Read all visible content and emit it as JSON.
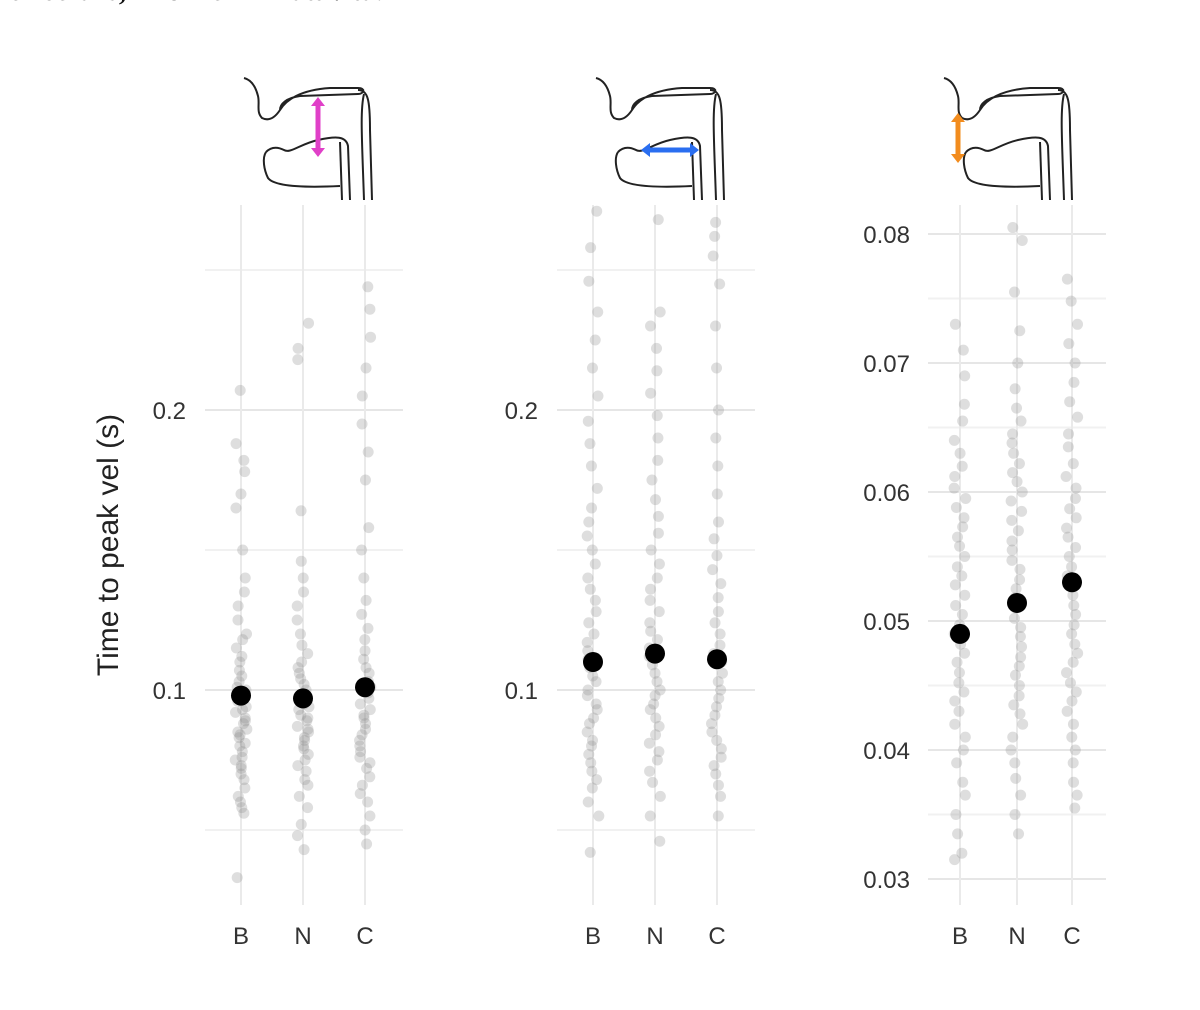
{
  "caption_fragment": "circolare, inibizioni in attività.",
  "chart_data": [
    {
      "type": "scatter",
      "panel": "tongue-tip vertical (raising)",
      "icon": {
        "name": "vocal-tract-icon",
        "arrow": "vertical",
        "arrow_location": "tongue tip",
        "color": "#e040c8"
      },
      "categories": [
        "B",
        "N",
        "C"
      ],
      "ylabel": "Time to peak vel (s)",
      "ylim": [
        0.03,
        0.28
      ],
      "yticks": [
        0.1,
        0.2
      ],
      "ytick_labels": [
        "0.1",
        "0.2"
      ],
      "grid": true,
      "means": [
        0.098,
        0.097,
        0.101
      ],
      "points": {
        "B": [
          0.033,
          0.056,
          0.058,
          0.06,
          0.062,
          0.065,
          0.068,
          0.07,
          0.072,
          0.073,
          0.075,
          0.076,
          0.078,
          0.08,
          0.081,
          0.083,
          0.084,
          0.085,
          0.086,
          0.088,
          0.089,
          0.09,
          0.092,
          0.093,
          0.094,
          0.096,
          0.097,
          0.098,
          0.1,
          0.101,
          0.103,
          0.105,
          0.107,
          0.11,
          0.112,
          0.115,
          0.118,
          0.12,
          0.125,
          0.13,
          0.135,
          0.14,
          0.15,
          0.165,
          0.17,
          0.178,
          0.182,
          0.188,
          0.207
        ],
        "N": [
          0.043,
          0.048,
          0.052,
          0.058,
          0.062,
          0.066,
          0.068,
          0.071,
          0.073,
          0.075,
          0.077,
          0.079,
          0.08,
          0.082,
          0.083,
          0.085,
          0.086,
          0.087,
          0.089,
          0.09,
          0.091,
          0.093,
          0.094,
          0.095,
          0.097,
          0.098,
          0.1,
          0.102,
          0.104,
          0.106,
          0.108,
          0.11,
          0.113,
          0.116,
          0.12,
          0.125,
          0.13,
          0.135,
          0.14,
          0.146,
          0.164,
          0.218,
          0.222,
          0.231
        ],
        "C": [
          0.045,
          0.05,
          0.055,
          0.06,
          0.063,
          0.066,
          0.069,
          0.072,
          0.074,
          0.076,
          0.078,
          0.08,
          0.082,
          0.084,
          0.086,
          0.088,
          0.09,
          0.091,
          0.093,
          0.095,
          0.097,
          0.099,
          0.101,
          0.103,
          0.106,
          0.108,
          0.111,
          0.114,
          0.118,
          0.122,
          0.127,
          0.132,
          0.14,
          0.15,
          0.158,
          0.175,
          0.185,
          0.195,
          0.205,
          0.215,
          0.226,
          0.236,
          0.244
        ]
      }
    },
    {
      "type": "scatter",
      "panel": "tongue-body horizontal (backing)",
      "icon": {
        "name": "vocal-tract-icon",
        "arrow": "horizontal",
        "arrow_location": "tongue body",
        "color": "#2a6ef0"
      },
      "categories": [
        "B",
        "N",
        "C"
      ],
      "ylabel": "",
      "ylim": [
        0.03,
        0.28
      ],
      "yticks": [
        0.1,
        0.2
      ],
      "ytick_labels": [
        "0.1",
        "0.2"
      ],
      "grid": true,
      "means": [
        0.11,
        0.113,
        0.111
      ],
      "points": {
        "B": [
          0.042,
          0.055,
          0.06,
          0.065,
          0.068,
          0.071,
          0.074,
          0.077,
          0.08,
          0.082,
          0.085,
          0.088,
          0.09,
          0.093,
          0.095,
          0.098,
          0.1,
          0.103,
          0.105,
          0.108,
          0.111,
          0.114,
          0.117,
          0.12,
          0.124,
          0.128,
          0.132,
          0.136,
          0.14,
          0.145,
          0.15,
          0.155,
          0.16,
          0.165,
          0.172,
          0.18,
          0.188,
          0.196,
          0.205,
          0.215,
          0.225,
          0.235,
          0.246,
          0.258,
          0.271
        ],
        "N": [
          0.046,
          0.055,
          0.062,
          0.067,
          0.071,
          0.075,
          0.078,
          0.081,
          0.084,
          0.087,
          0.09,
          0.093,
          0.095,
          0.098,
          0.1,
          0.103,
          0.106,
          0.109,
          0.112,
          0.115,
          0.118,
          0.121,
          0.124,
          0.128,
          0.132,
          0.136,
          0.14,
          0.145,
          0.15,
          0.156,
          0.162,
          0.168,
          0.175,
          0.182,
          0.19,
          0.198,
          0.206,
          0.214,
          0.222,
          0.23,
          0.235,
          0.268
        ],
        "C": [
          0.055,
          0.062,
          0.066,
          0.07,
          0.073,
          0.076,
          0.079,
          0.082,
          0.085,
          0.088,
          0.091,
          0.094,
          0.097,
          0.1,
          0.103,
          0.106,
          0.11,
          0.113,
          0.116,
          0.12,
          0.124,
          0.128,
          0.133,
          0.138,
          0.143,
          0.148,
          0.154,
          0.16,
          0.17,
          0.18,
          0.19,
          0.2,
          0.215,
          0.23,
          0.245,
          0.255,
          0.262,
          0.267
        ]
      }
    },
    {
      "type": "scatter",
      "panel": "lip aperture",
      "icon": {
        "name": "vocal-tract-icon",
        "arrow": "vertical",
        "arrow_location": "lips",
        "color": "#f28c1e"
      },
      "categories": [
        "B",
        "N",
        "C"
      ],
      "ylabel": "",
      "ylim": [
        0.029,
        0.081
      ],
      "yticks": [
        0.03,
        0.04,
        0.05,
        0.06,
        0.07,
        0.08
      ],
      "ytick_labels": [
        "0.03",
        "0.04",
        "0.05",
        "0.06",
        "0.07",
        "0.08"
      ],
      "grid": true,
      "means": [
        0.049,
        0.0514,
        0.053
      ],
      "points": {
        "B": [
          0.0315,
          0.032,
          0.0335,
          0.035,
          0.0365,
          0.0375,
          0.039,
          0.04,
          0.041,
          0.042,
          0.043,
          0.0438,
          0.0445,
          0.0452,
          0.046,
          0.0468,
          0.0475,
          0.0482,
          0.049,
          0.0497,
          0.0505,
          0.0512,
          0.052,
          0.0528,
          0.0535,
          0.0542,
          0.055,
          0.0558,
          0.0565,
          0.0573,
          0.058,
          0.0588,
          0.0595,
          0.0603,
          0.0612,
          0.062,
          0.063,
          0.064,
          0.0655,
          0.0668,
          0.069,
          0.071,
          0.073
        ],
        "N": [
          0.0335,
          0.035,
          0.0365,
          0.0378,
          0.039,
          0.04,
          0.041,
          0.042,
          0.0428,
          0.0435,
          0.0442,
          0.045,
          0.0458,
          0.0465,
          0.0472,
          0.048,
          0.0488,
          0.0495,
          0.0502,
          0.051,
          0.0518,
          0.0525,
          0.0532,
          0.054,
          0.0547,
          0.0555,
          0.0562,
          0.057,
          0.0578,
          0.0585,
          0.0593,
          0.06,
          0.0608,
          0.0615,
          0.0622,
          0.063,
          0.0638,
          0.0645,
          0.0655,
          0.0665,
          0.068,
          0.07,
          0.0725,
          0.0755,
          0.0795,
          0.0805
        ],
        "C": [
          0.0355,
          0.0365,
          0.0375,
          0.039,
          0.04,
          0.041,
          0.042,
          0.043,
          0.0438,
          0.0445,
          0.0452,
          0.046,
          0.0468,
          0.0475,
          0.0482,
          0.049,
          0.0497,
          0.0505,
          0.0512,
          0.052,
          0.0527,
          0.0535,
          0.0542,
          0.055,
          0.0557,
          0.0565,
          0.0572,
          0.058,
          0.0587,
          0.0595,
          0.0603,
          0.0612,
          0.0622,
          0.0635,
          0.0645,
          0.0658,
          0.067,
          0.0685,
          0.07,
          0.0715,
          0.073,
          0.0748,
          0.0765
        ]
      }
    }
  ]
}
